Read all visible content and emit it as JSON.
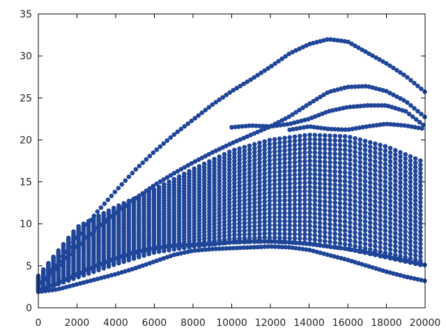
{
  "chart_data": {
    "type": "scatter",
    "title": "",
    "xlabel": "",
    "ylabel": "",
    "xlim": [
      0,
      20000
    ],
    "ylim": [
      0,
      35
    ],
    "xticks": [
      0,
      2000,
      4000,
      6000,
      8000,
      10000,
      12000,
      14000,
      16000,
      18000,
      20000
    ],
    "yticks": [
      0,
      5,
      10,
      15,
      20,
      25,
      30,
      35
    ],
    "xtick_labels": [
      "0",
      "2000",
      "4000",
      "6000",
      "8000",
      "10000",
      "12000",
      "14000",
      "16000",
      "18000",
      "20000"
    ],
    "ytick_labels": [
      "0",
      "5",
      "10",
      "15",
      "20",
      "25",
      "30",
      "35"
    ],
    "grid": false,
    "legend": "none",
    "marker_color": "#1f4599",
    "series": [
      {
        "values": [
          [
            0,
            2.5
          ],
          [
            1000,
            5.3
          ],
          [
            2000,
            8.4
          ],
          [
            3000,
            11.3
          ],
          [
            4000,
            13.9
          ],
          [
            5000,
            16.4
          ],
          [
            6000,
            18.6
          ],
          [
            7000,
            20.6
          ],
          [
            8000,
            22.4
          ],
          [
            9000,
            24.2
          ],
          [
            10000,
            25.8
          ],
          [
            11000,
            27.2
          ],
          [
            12000,
            28.7
          ],
          [
            13000,
            30.3
          ],
          [
            14000,
            31.4
          ],
          [
            15000,
            32.0
          ],
          [
            16000,
            31.7
          ],
          [
            17000,
            30.4
          ],
          [
            18000,
            29.1
          ],
          [
            19000,
            27.6
          ],
          [
            20000,
            25.7
          ]
        ]
      },
      {
        "values": [
          [
            0,
            2.6
          ],
          [
            1000,
            4.9
          ],
          [
            2000,
            7.3
          ],
          [
            3000,
            9.4
          ],
          [
            4000,
            11.3
          ],
          [
            5000,
            13.0
          ],
          [
            6000,
            14.6
          ],
          [
            7000,
            16.0
          ],
          [
            8000,
            17.3
          ],
          [
            9000,
            18.5
          ],
          [
            10000,
            19.6
          ],
          [
            11000,
            20.6
          ],
          [
            12000,
            21.6
          ],
          [
            13000,
            22.8
          ],
          [
            14000,
            24.3
          ],
          [
            15000,
            25.7
          ],
          [
            16000,
            26.3
          ],
          [
            17000,
            26.4
          ],
          [
            18000,
            25.8
          ],
          [
            19000,
            24.6
          ],
          [
            20000,
            22.7
          ]
        ]
      },
      {
        "values": [
          [
            10000,
            21.5
          ],
          [
            11000,
            21.7
          ],
          [
            12000,
            21.6
          ],
          [
            13000,
            21.9
          ],
          [
            14000,
            22.5
          ],
          [
            15000,
            23.4
          ],
          [
            16000,
            23.9
          ],
          [
            17000,
            24.1
          ],
          [
            18000,
            24.1
          ],
          [
            19000,
            23.4
          ],
          [
            20000,
            21.6
          ]
        ]
      },
      {
        "values": [
          [
            13000,
            21.2
          ],
          [
            14000,
            21.6
          ],
          [
            15000,
            21.3
          ],
          [
            16000,
            21.2
          ],
          [
            17000,
            21.6
          ],
          [
            18000,
            21.9
          ],
          [
            19000,
            21.7
          ],
          [
            20000,
            21.3
          ]
        ]
      },
      {
        "values": [
          [
            0,
            1.9
          ],
          [
            1000,
            2.2
          ],
          [
            2000,
            2.8
          ],
          [
            3000,
            3.4
          ],
          [
            4000,
            4.0
          ],
          [
            5000,
            4.7
          ],
          [
            6000,
            5.5
          ],
          [
            7000,
            6.3
          ],
          [
            8000,
            6.8
          ],
          [
            9000,
            7.0
          ],
          [
            10000,
            7.1
          ],
          [
            11000,
            7.2
          ],
          [
            12000,
            7.3
          ],
          [
            13000,
            7.2
          ],
          [
            14000,
            6.9
          ],
          [
            15000,
            6.3
          ],
          [
            16000,
            5.7
          ],
          [
            17000,
            5.0
          ],
          [
            18000,
            4.3
          ],
          [
            19000,
            3.7
          ],
          [
            20000,
            3.2
          ]
        ]
      },
      {
        "values": [
          [
            0,
            2.0
          ],
          [
            1000,
            2.9
          ],
          [
            2000,
            4.0
          ],
          [
            3000,
            5.0
          ],
          [
            4000,
            5.9
          ],
          [
            5000,
            6.6
          ],
          [
            6000,
            7.1
          ],
          [
            7000,
            7.4
          ],
          [
            8000,
            7.5
          ],
          [
            9000,
            7.6
          ],
          [
            10000,
            7.8
          ],
          [
            11000,
            7.9
          ],
          [
            12000,
            7.9
          ],
          [
            13000,
            7.8
          ],
          [
            14000,
            7.6
          ],
          [
            15000,
            7.3
          ],
          [
            16000,
            7.0
          ],
          [
            17000,
            6.6
          ],
          [
            18000,
            6.1
          ],
          [
            19000,
            5.6
          ],
          [
            20000,
            5.1
          ]
        ]
      }
    ],
    "dense_band": {
      "lower": [
        [
          0,
          2.0
        ],
        [
          2000,
          3.6
        ],
        [
          4000,
          5.2
        ],
        [
          6000,
          6.6
        ],
        [
          8000,
          7.3
        ],
        [
          10000,
          7.8
        ],
        [
          12000,
          7.9
        ],
        [
          14000,
          7.7
        ],
        [
          16000,
          7.0
        ],
        [
          18000,
          6.0
        ],
        [
          20000,
          5.0
        ]
      ],
      "upper": [
        [
          0,
          3.8
        ],
        [
          2000,
          9.6
        ],
        [
          4000,
          12.0
        ],
        [
          6000,
          14.1
        ],
        [
          8000,
          16.5
        ],
        [
          10000,
          18.7
        ],
        [
          12000,
          20.0
        ],
        [
          14000,
          20.6
        ],
        [
          16000,
          20.4
        ],
        [
          18000,
          19.2
        ],
        [
          20000,
          17.3
        ]
      ]
    }
  }
}
